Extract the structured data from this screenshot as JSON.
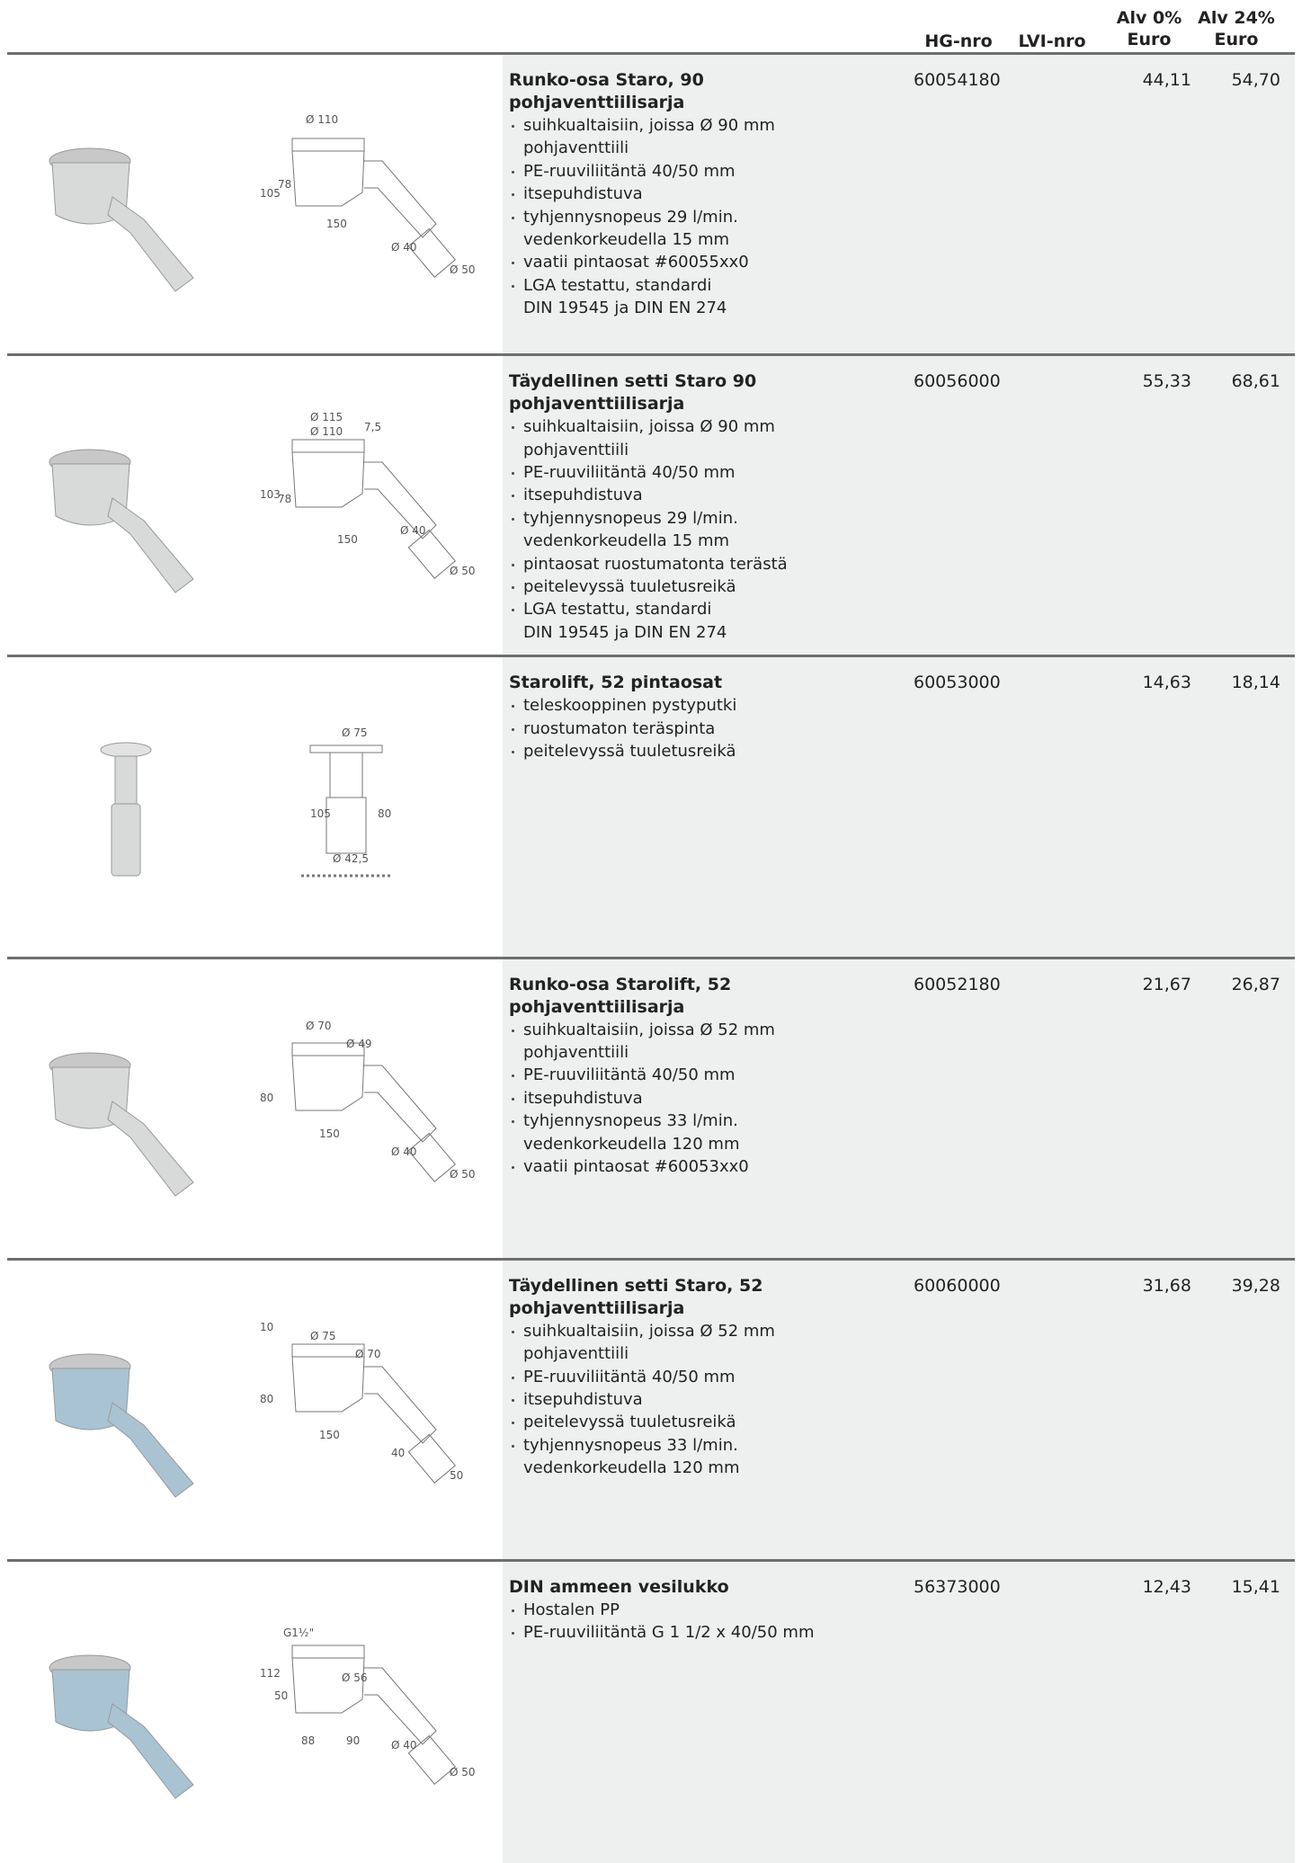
{
  "header": {
    "hg": "HG-nro",
    "lvi": "LVI-nro",
    "alv0": [
      "Alv 0%",
      "Euro"
    ],
    "alv24": [
      "Alv 24%",
      "Euro"
    ]
  },
  "products": [
    {
      "title": [
        "Runko-osa Staro, 90",
        "pohjaventtiilisarja"
      ],
      "hg": "60054180",
      "alv0": "44,11",
      "alv24": "54,70",
      "features": [
        [
          "suihkualtaisiin, joissa Ø 90 mm",
          "pohjaventtiili"
        ],
        [
          "PE-ruuviliitäntä 40/50 mm"
        ],
        [
          "itsepuhdistuva"
        ],
        [
          "tyhjennysnopeus 29 l/min.",
          "vedenkorkeudella 15 mm"
        ],
        [
          "vaatii pintaosat #60055xx0"
        ],
        [
          "LGA testattu, standardi",
          "DIN 19545 ja DIN EN 274"
        ]
      ],
      "dimensions": [
        "Ø 110",
        "105",
        "78",
        "150",
        "Ø 40",
        "Ø 50"
      ]
    },
    {
      "title": [
        "Täydellinen setti Staro 90",
        "pohjaventtiilisarja"
      ],
      "hg": "60056000",
      "alv0": "55,33",
      "alv24": "68,61",
      "features": [
        [
          "suihkualtaisiin, joissa Ø 90 mm",
          "pohjaventtiili"
        ],
        [
          "PE-ruuviliitäntä 40/50 mm"
        ],
        [
          "itsepuhdistuva"
        ],
        [
          "tyhjennysnopeus 29 l/min.",
          "vedenkorkeudella 15 mm"
        ],
        [
          "pintaosat ruostumatonta terästä"
        ],
        [
          "peitelevyssä tuuletusreikä"
        ],
        [
          "LGA testattu, standardi",
          "DIN 19545 ja DIN EN 274"
        ]
      ],
      "dimensions": [
        "Ø 115",
        "103",
        "78",
        "150",
        "Ø 40",
        "Ø 50",
        "Ø 110",
        "7,5"
      ]
    },
    {
      "title": [
        "Starolift, 52 pintaosat"
      ],
      "hg": "60053000",
      "alv0": "14,63",
      "alv24": "18,14",
      "features": [
        [
          "teleskooppinen pystyputki"
        ],
        [
          "ruostumaton teräspinta"
        ],
        [
          "peitelevyssä tuuletusreikä"
        ]
      ],
      "dimensions": [
        "Ø 75",
        "105",
        "80",
        "Ø 42,5"
      ]
    },
    {
      "title": [
        "Runko-osa Starolift, 52",
        "pohjaventtiilisarja"
      ],
      "hg": "60052180",
      "alv0": "21,67",
      "alv24": "26,87",
      "features": [
        [
          "suihkualtaisiin, joissa Ø 52 mm",
          "pohjaventtiili"
        ],
        [
          "PE-ruuviliitäntä 40/50 mm"
        ],
        [
          "itsepuhdistuva"
        ],
        [
          "tyhjennysnopeus 33 l/min.",
          "vedenkorkeudella 120 mm"
        ],
        [
          "vaatii pintaosat #60053xx0"
        ]
      ],
      "dimensions": [
        "Ø 70",
        "80",
        "150",
        "Ø 40",
        "Ø 50",
        "Ø 49"
      ]
    },
    {
      "title": [
        "Täydellinen setti Staro, 52",
        "pohjaventtiilisarja"
      ],
      "hg": "60060000",
      "alv0": "31,68",
      "alv24": "39,28",
      "features": [
        [
          "suihkualtaisiin, joissa Ø 52 mm",
          "pohjaventtiili"
        ],
        [
          "PE-ruuviliitäntä 40/50 mm"
        ],
        [
          "itsepuhdistuva"
        ],
        [
          "peitelevyssä tuuletusreikä"
        ],
        [
          "tyhjennysnopeus 33 l/min.",
          "vedenkorkeudella 120 mm"
        ]
      ],
      "dimensions": [
        "Ø 75",
        "80",
        "150",
        "40",
        "50",
        "Ø 70",
        "10"
      ]
    },
    {
      "title": [
        "DIN ammeen vesilukko"
      ],
      "hg": "56373000",
      "alv0": "12,43",
      "alv24": "15,41",
      "features": [
        [
          "Hostalen PP"
        ],
        [
          "PE-ruuviliitäntä G 1 1/2 x 40/50 mm"
        ]
      ],
      "dimensions": [
        "G1½\"",
        "112",
        "50",
        "88",
        "Ø 40",
        "Ø 50",
        "Ø 56",
        "90"
      ]
    }
  ]
}
